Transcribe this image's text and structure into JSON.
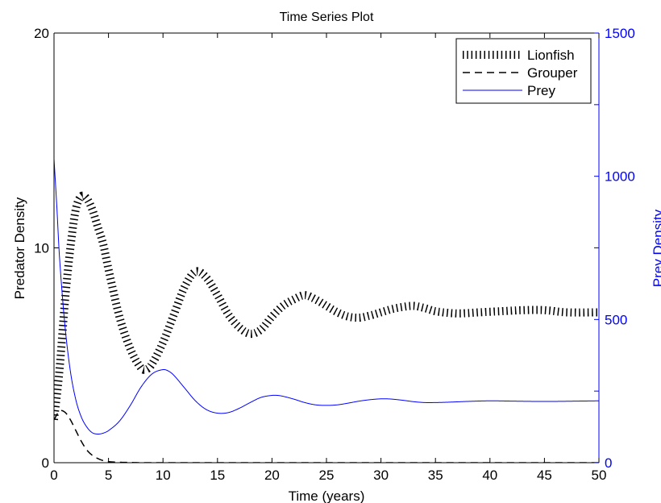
{
  "chart_data": {
    "type": "line",
    "title": "Time Series Plot",
    "xlabel": "Time (years)",
    "ylabel_left": "Predator Density",
    "ylabel_right": "Prey Density",
    "xlim": [
      0,
      50
    ],
    "ylim_left": [
      0,
      20
    ],
    "ylim_right": [
      0,
      1500
    ],
    "x_ticks": [
      0,
      5,
      10,
      15,
      20,
      25,
      30,
      35,
      40,
      45,
      50
    ],
    "y_left_ticks": [
      0,
      10,
      20
    ],
    "y_right_ticks": [
      0,
      500,
      1000,
      1500
    ],
    "grid": false,
    "legend_position": "top-right",
    "colors": {
      "lionfish": "#000000",
      "grouper": "#000000",
      "prey": "#0000ff",
      "right_axis": "#0000ff"
    },
    "series": [
      {
        "name": "Lionfish",
        "axis": "left",
        "style": "hatched",
        "x": [
          0,
          0.5,
          1,
          1.5,
          2,
          2.5,
          3,
          3.5,
          4,
          4.5,
          5,
          6,
          7,
          8,
          8.5,
          9,
          10,
          11,
          12,
          13,
          14,
          15,
          16,
          17,
          18,
          19,
          20,
          21,
          22,
          23,
          24,
          25,
          26,
          27,
          28,
          29,
          30,
          31,
          32,
          33,
          34,
          35,
          37,
          39,
          41,
          43,
          45,
          47,
          50
        ],
        "values": [
          2,
          4.3,
          7.5,
          10,
          11.8,
          12.4,
          12.3,
          11.8,
          11,
          10.2,
          9,
          6.8,
          5.3,
          4.4,
          4.35,
          4.6,
          5.6,
          6.9,
          8.2,
          8.9,
          8.6,
          7.8,
          6.9,
          6.3,
          6.0,
          6.2,
          6.8,
          7.3,
          7.6,
          7.8,
          7.6,
          7.3,
          7.0,
          6.8,
          6.75,
          6.85,
          7.0,
          7.15,
          7.25,
          7.3,
          7.2,
          7.05,
          6.95,
          7.0,
          7.05,
          7.1,
          7.1,
          7.0,
          7.0
        ]
      },
      {
        "name": "Grouper",
        "axis": "left",
        "style": "dashed",
        "x": [
          0,
          0.5,
          1,
          1.5,
          2,
          2.5,
          3,
          3.5,
          4,
          4.5,
          5,
          6,
          7,
          8,
          10,
          15,
          20,
          30,
          40,
          50
        ],
        "values": [
          2,
          2.4,
          2.35,
          2.0,
          1.5,
          1.0,
          0.6,
          0.35,
          0.2,
          0.1,
          0.05,
          0.02,
          0.01,
          0,
          0,
          0,
          0,
          0,
          0,
          0
        ]
      },
      {
        "name": "Prey",
        "axis": "right",
        "style": "solid",
        "x": [
          0,
          0.25,
          0.5,
          1,
          1.5,
          2,
          2.5,
          3,
          3.5,
          4,
          4.5,
          5,
          6,
          7,
          8,
          9,
          10,
          10.5,
          11,
          12,
          13,
          14,
          15,
          16,
          17,
          18,
          19,
          20,
          20.5,
          21,
          22,
          23,
          24,
          25,
          26,
          27,
          28,
          29,
          30,
          30.5,
          31,
          32,
          33,
          34,
          35,
          36,
          38,
          40,
          42,
          44,
          46,
          48,
          50
        ],
        "values": [
          1060,
          900,
          720,
          480,
          320,
          220,
          160,
          125,
          105,
          100,
          103,
          112,
          145,
          200,
          265,
          310,
          325,
          320,
          305,
          260,
          215,
          185,
          173,
          175,
          190,
          210,
          228,
          235,
          235,
          232,
          222,
          210,
          202,
          200,
          202,
          208,
          215,
          220,
          223,
          223,
          222,
          218,
          213,
          210,
          210,
          211,
          214,
          216,
          215,
          214,
          214,
          215,
          216
        ]
      }
    ]
  }
}
